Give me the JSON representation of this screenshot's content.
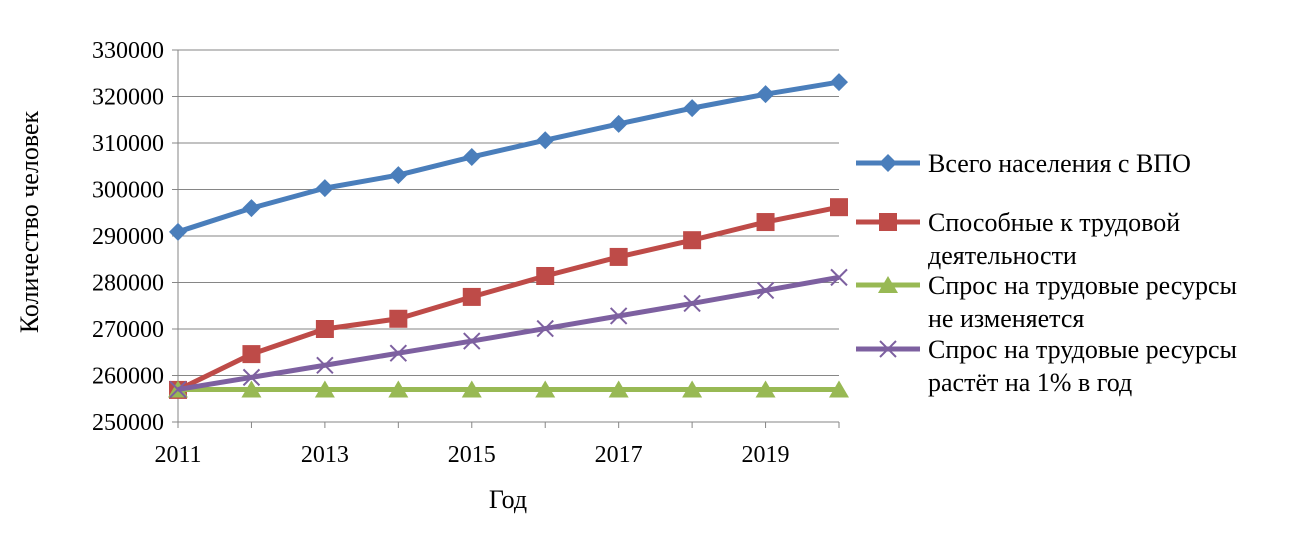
{
  "chart_data": {
    "type": "line",
    "title": "",
    "xlabel": "Год",
    "ylabel": "Количество человек",
    "x": [
      2011,
      2012,
      2013,
      2014,
      2015,
      2016,
      2017,
      2018,
      2019,
      2020
    ],
    "x_tick_labels": [
      "2011",
      "2013",
      "2015",
      "2017",
      "2019"
    ],
    "x_ticks": [
      2011,
      2013,
      2015,
      2017,
      2019
    ],
    "ylim": [
      250000,
      330000
    ],
    "y_ticks": [
      250000,
      260000,
      270000,
      280000,
      290000,
      300000,
      310000,
      320000,
      330000
    ],
    "y_tick_labels": [
      "250000",
      "260000",
      "270000",
      "280000",
      "290000",
      "300000",
      "310000",
      "320000",
      "330000"
    ],
    "grid": true,
    "legend_placement": "right",
    "series": [
      {
        "name": "Всего населения с ВПО",
        "legend_lines": [
          "Всего населения с ВПО"
        ],
        "color": "#4a7ebb",
        "marker": "diamond",
        "values": [
          290900,
          296000,
          300300,
          303100,
          307000,
          310600,
          314100,
          317500,
          320500,
          323100
        ]
      },
      {
        "name": "Способные к трудовой деятельности",
        "legend_lines": [
          "Способные к трудовой",
          "деятельности"
        ],
        "color": "#be4b48",
        "marker": "square",
        "values": [
          256900,
          264600,
          270000,
          272200,
          276900,
          281400,
          285500,
          289100,
          293000,
          296200
        ]
      },
      {
        "name": "Спрос на трудовые ресурсы не изменяется",
        "legend_lines": [
          "Спрос на трудовые ресурсы",
          "не изменяется"
        ],
        "color": "#98b954",
        "marker": "triangle",
        "values": [
          257000,
          257000,
          257000,
          257000,
          257000,
          257000,
          257000,
          257000,
          257000,
          257000
        ]
      },
      {
        "name": "Спрос на трудовые ресурсы растёт на 1% в год",
        "legend_lines": [
          "Спрос на трудовые ресурсы",
          "растёт на 1% в год"
        ],
        "color": "#7d60a0",
        "marker": "x",
        "values": [
          257000,
          259600,
          262200,
          264800,
          267400,
          270100,
          272800,
          275500,
          278300,
          281100
        ]
      }
    ]
  }
}
